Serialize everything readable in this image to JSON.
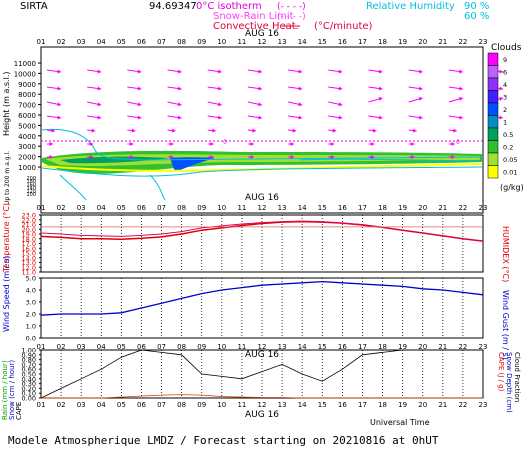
{
  "header": {
    "station": "SIRTA",
    "coords": "94.69347",
    "zero_label": "0",
    "iso_label": "0°C isotherm",
    "iso_style": "(- - - -)",
    "snow_label": "Snow-Rain Limit",
    "snow_style": "(- - - -)",
    "conv_label": "Convective Heat.",
    "conv_unit": "(°C/minute)",
    "rh_label": "Relative Humidity",
    "rh_90": "90 %",
    "rh_60": "60 %"
  },
  "date_label": "AUG 16",
  "hours": [
    "01",
    "02",
    "03",
    "04",
    "05",
    "06",
    "07",
    "08",
    "09",
    "10",
    "11",
    "12",
    "13",
    "14",
    "15",
    "16",
    "17",
    "18",
    "19",
    "20",
    "21",
    "22",
    "23"
  ],
  "clouds": {
    "title": "Clouds",
    "unit": "(g/kg)",
    "scale": [
      "9",
      "6",
      "4",
      "3",
      "2",
      "1",
      "0.5",
      "0.2",
      "0.05",
      "0.01"
    ],
    "colors": [
      "#ff00ff",
      "#c060ff",
      "#9030ff",
      "#4020ff",
      "#0050ff",
      "#0090c0",
      "#00a060",
      "#30c030",
      "#a0e030",
      "#ffff00"
    ]
  },
  "footer": {
    "text": "Modele Atmospherique LMDZ / Forecast starting on 20210816 at 0hUT",
    "universal_time": "Universal Time"
  },
  "chart_data": [
    {
      "type": "line",
      "panel": "upper-air",
      "ylabel": "Height (m a.s.l.)",
      "ylabel2": "Up to 200 m a.g.l.",
      "y_ticks": [
        "11000",
        "10000",
        "9000",
        "8000",
        "7000",
        "6000",
        "5000",
        "4000",
        "3000",
        "2000",
        "1000"
      ],
      "y_ticks_low": [
        "200",
        "180",
        "160",
        "140",
        "120",
        "100"
      ],
      "zero_isotherm_height_m": 3500,
      "winds": "wind arrows at 10 levels for each hour, mostly westerly at upper levels"
    },
    {
      "type": "line",
      "panel": "temperature",
      "ylabel": "Temperature (°C)",
      "ylabel2": "HUMIDEX (°C)",
      "y_ticks": [
        "23.0",
        "22.0",
        "21.0",
        "20.0",
        "19.0",
        "18.0",
        "17.0",
        "16.0",
        "15.0",
        "14.0",
        "13.0",
        "12.0",
        "11.0"
      ],
      "ylim": [
        11.0,
        23.0
      ],
      "x": [
        "01",
        "02",
        "03",
        "04",
        "05",
        "06",
        "07",
        "08",
        "09",
        "10",
        "11",
        "12",
        "13",
        "14",
        "15",
        "16",
        "17",
        "18",
        "19",
        "20",
        "21",
        "22",
        "23"
      ],
      "series": [
        {
          "values": [
            18.5,
            18.3,
            18.0,
            18.0,
            17.9,
            18.1,
            18.4,
            19.0,
            19.8,
            20.3,
            20.8,
            21.2,
            21.5,
            21.6,
            21.5,
            21.3,
            20.9,
            20.4,
            19.8,
            19.2,
            18.6,
            18.0,
            17.5
          ]
        },
        {
          "values": [
            19.2,
            19.0,
            18.7,
            18.6,
            18.5,
            18.7,
            19.0,
            19.5,
            20.3,
            20.7,
            21.1,
            21.4,
            21.6,
            21.7,
            21.6,
            21.3,
            21.0,
            20.4,
            19.8,
            19.2,
            18.6,
            18.0,
            17.5
          ]
        },
        {
          "values": [
            20.5,
            20.5,
            20.5,
            20.5,
            20.5,
            20.5,
            20.5,
            20.5,
            20.5,
            20.5,
            20.5,
            20.5,
            20.5,
            20.5,
            20.5,
            20.5,
            20.5,
            20.5,
            20.5,
            20.5,
            20.5,
            20.5,
            20.5
          ]
        }
      ]
    },
    {
      "type": "line",
      "panel": "wind",
      "ylabel": "Wind Speed (m / s)",
      "ylabel2": "Wind Gust (m / s)",
      "y_ticks": [
        "5.0",
        "4.0",
        "3.0",
        "2.0",
        "1.0",
        "0.0"
      ],
      "ylim": [
        0,
        5
      ],
      "x": [
        "01",
        "02",
        "03",
        "04",
        "05",
        "06",
        "07",
        "08",
        "09",
        "10",
        "11",
        "12",
        "13",
        "14",
        "15",
        "16",
        "17",
        "18",
        "19",
        "20",
        "21",
        "22",
        "23"
      ],
      "series": [
        {
          "values": [
            1.9,
            2.0,
            2.0,
            2.0,
            2.1,
            2.5,
            2.9,
            3.3,
            3.7,
            4.0,
            4.2,
            4.4,
            4.5,
            4.6,
            4.7,
            4.6,
            4.5,
            4.4,
            4.3,
            4.1,
            4.0,
            3.8,
            3.6
          ]
        }
      ]
    },
    {
      "type": "line",
      "panel": "rain",
      "ylabel": "Rain (mm / hour)",
      "ylabel_b": "Snow (cm / hour)",
      "ylabel_c": "CAPE",
      "ylabel2": "CAPE (J / g)",
      "ylabel2_b": "Snow Depth (cm)",
      "ylabel2_c": "Cloud Fraction",
      "y_ticks": [
        "1.00",
        "0.90",
        "0.80",
        "0.70",
        "0.60",
        "0.50",
        "0.40",
        "0.30",
        "0.20",
        "0.10",
        "0.00"
      ],
      "ylim": [
        0,
        1
      ],
      "x": [
        "01",
        "02",
        "03",
        "04",
        "05",
        "06",
        "07",
        "08",
        "09",
        "10",
        "11",
        "12",
        "13",
        "14",
        "15",
        "16",
        "17",
        "18",
        "19",
        "20",
        "21",
        "22",
        "23"
      ],
      "series": [
        {
          "values": [
            0.0,
            0.2,
            0.4,
            0.6,
            0.85,
            1.0,
            0.95,
            0.9,
            0.5,
            0.45,
            0.4,
            0.55,
            0.7,
            0.5,
            0.35,
            0.6,
            0.9,
            0.95,
            1.0,
            1.0,
            1.0,
            1.0,
            1.0
          ]
        },
        {
          "values": [
            0.0,
            0.0,
            0.0,
            0.0,
            0.02,
            0.04,
            0.06,
            0.07,
            0.06,
            0.03,
            0.02,
            0.01,
            0.01,
            0.0,
            0.0,
            0.0,
            0.0,
            0.0,
            0.0,
            0.0,
            0.0,
            0.0,
            0.0
          ]
        }
      ]
    }
  ]
}
